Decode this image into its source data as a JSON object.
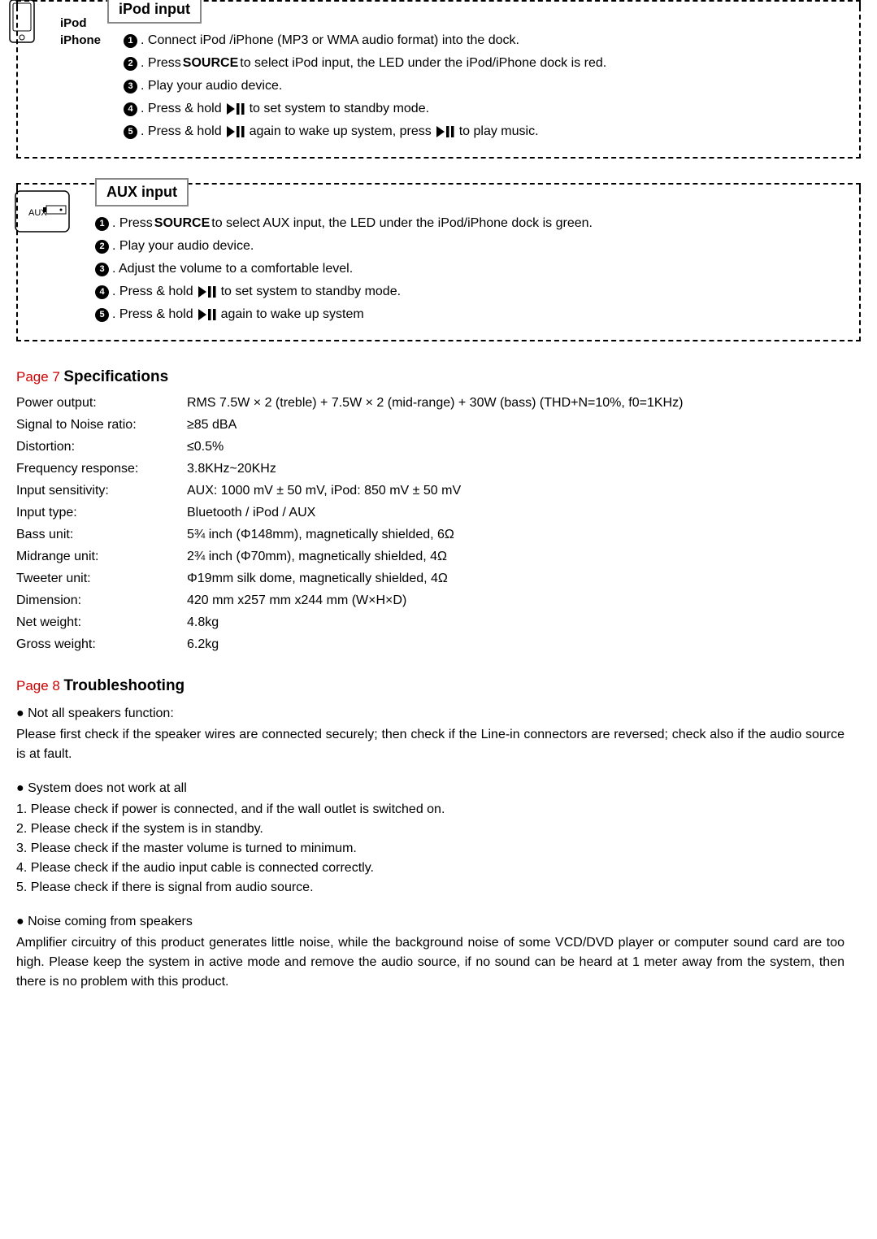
{
  "ipod": {
    "title": "iPod input",
    "side_label1": "iPod",
    "side_label2": "iPhone",
    "steps": [
      {
        "n": "1",
        "pre": ". Connect iPod /iPhone (MP3 or WMA audio format) into the dock."
      },
      {
        "n": "2",
        "pre": ". Press ",
        "bold": "SOURCE",
        "post": " to select iPod input, the LED under the iPod/iPhone dock is red."
      },
      {
        "n": "3",
        "pre": ". Play your audio device."
      },
      {
        "n": "4",
        "pre": ". Press & hold  ",
        "icon": true,
        "post": "  to set system to standby mode."
      },
      {
        "n": "5",
        "pre": ". Press & hold  ",
        "icon": true,
        "mid": "  again to wake up system, press",
        "icon2": true,
        "post": "  to play music."
      }
    ]
  },
  "aux": {
    "title": "AUX input",
    "icon_label": "AUX",
    "steps": [
      {
        "n": "1",
        "pre": ". Press ",
        "bold": "SOURCE",
        "post": " to select AUX input, the LED under the iPod/iPhone dock is green."
      },
      {
        "n": "2",
        "pre": ". Play your audio device."
      },
      {
        "n": "3",
        "pre": ". Adjust the volume to a comfortable level."
      },
      {
        "n": "4",
        "pre": ". Press & hold  ",
        "icon": true,
        "post": "  to set system to standby mode."
      },
      {
        "n": "5",
        "pre": ". Press & hold  ",
        "icon": true,
        "post": "  again to wake up system"
      }
    ]
  },
  "specs": {
    "page_num": "Page 7",
    "title": "Specifications",
    "rows": [
      {
        "label": "Power output:",
        "value": "RMS 7.5W × 2 (treble) + 7.5W × 2 (mid-range) + 30W (bass) (THD+N=10%, f0=1KHz)"
      },
      {
        "label": "Signal to Noise ratio:",
        "value": "≥85 dBA"
      },
      {
        "label": "Distortion:",
        "value": "≤0.5%"
      },
      {
        "label": "Frequency response:",
        "value": "3.8KHz~20KHz"
      },
      {
        "label": "Input sensitivity:",
        "value": "AUX: 1000 mV ± 50 mV, iPod: 850 mV ± 50 mV"
      },
      {
        "label": "Input type:",
        "value": "Bluetooth / iPod / AUX"
      },
      {
        "label": "Bass unit:",
        "value": "5¾ inch (Φ148mm), magnetically shielded, 6Ω"
      },
      {
        "label": "Midrange unit:",
        "value": "2¾ inch (Φ70mm), magnetically shielded, 4Ω"
      },
      {
        "label": "Tweeter unit:",
        "value": "Φ19mm silk dome, magnetically shielded, 4Ω"
      },
      {
        "label": "Dimension:",
        "value": "420 mm x257 mm x244 mm (W×H×D)"
      },
      {
        "label": "Net weight:",
        "value": "4.8kg"
      },
      {
        "label": "Gross weight:",
        "value": "6.2kg"
      }
    ]
  },
  "trouble": {
    "page_num": "Page 8",
    "title": "Troubleshooting",
    "items": [
      {
        "heading": "● Not all speakers function:",
        "body": "Please first check if the speaker wires are connected securely; then check if the Line-in connectors are reversed; check also if the audio source is at fault."
      },
      {
        "heading": "● System does not work at all",
        "list": [
          "1. Please check if power is connected, and if the wall outlet is switched on.",
          "2. Please check if the system is in standby.",
          "3. Please check if the master volume is turned to minimum.",
          "4. Please check if the audio input cable is connected correctly.",
          "5. Please check if there is signal from audio source."
        ]
      },
      {
        "heading": "● Noise coming from speakers",
        "body": "Amplifier circuitry of this product generates little noise, while the background noise of some VCD/DVD player or computer sound card are too high. Please keep the system in active mode and remove the audio source, if no sound can be heard at 1 meter away from the system, then there is no problem with this product."
      }
    ]
  },
  "colors": {
    "page_num": "#d00000",
    "text": "#000000",
    "border_gray": "#888888"
  }
}
